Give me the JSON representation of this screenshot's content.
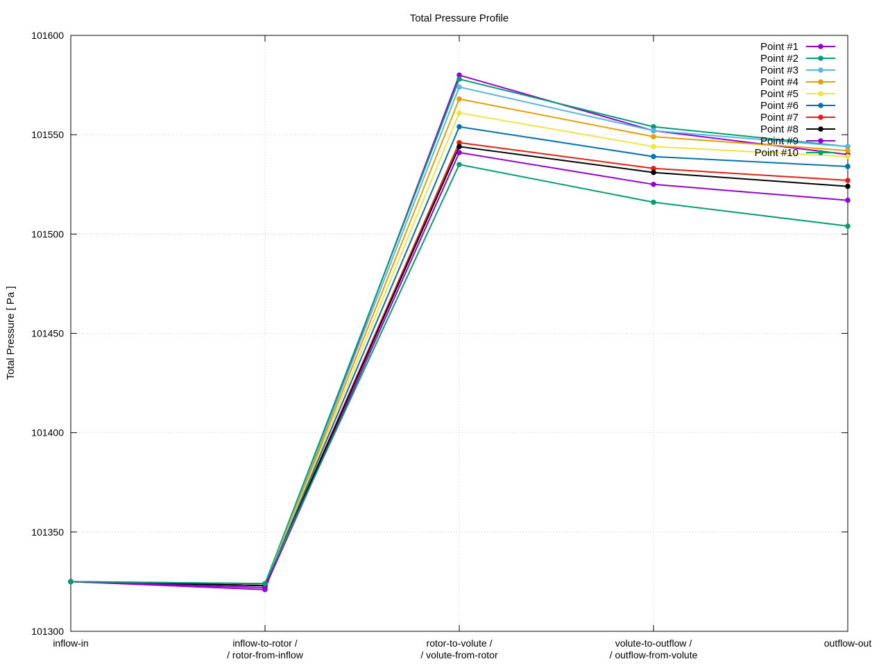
{
  "chart_data": {
    "type": "line",
    "title": "Total Pressure Profile",
    "xlabel": "",
    "ylabel": "Total Pressure [ Pa ]",
    "ylim": [
      101300,
      101600
    ],
    "yticks": [
      101300,
      101350,
      101400,
      101450,
      101500,
      101550,
      101600
    ],
    "ytick_labels": [
      "101300",
      "101350",
      "101400",
      "101450",
      "101500",
      "101550",
      "101600"
    ],
    "categories": [
      [
        "inflow-in"
      ],
      [
        "inflow-to-rotor /",
        "/ rotor-from-inflow"
      ],
      [
        "rotor-to-volute /",
        "/ volute-from-rotor"
      ],
      [
        "volute-to-outflow /",
        "/ outflow-from-volute"
      ],
      [
        "outflow-out"
      ]
    ],
    "grid": true,
    "legend_position": "top-right",
    "series": [
      {
        "name": "Point #1",
        "color": "#9400d3",
        "values": [
          101325,
          101321,
          101580,
          101552,
          101540
        ]
      },
      {
        "name": "Point #2",
        "color": "#009e73",
        "values": [
          101325,
          101324,
          101578,
          101554,
          101544
        ]
      },
      {
        "name": "Point #3",
        "color": "#56b4e9",
        "values": [
          101325,
          101323,
          101574,
          101552,
          101544
        ]
      },
      {
        "name": "Point #4",
        "color": "#e69f00",
        "values": [
          101325,
          101323,
          101568,
          101549,
          101542
        ]
      },
      {
        "name": "Point #5",
        "color": "#f0e442",
        "values": [
          101325,
          101323,
          101561,
          101544,
          101539
        ]
      },
      {
        "name": "Point #6",
        "color": "#0072b2",
        "values": [
          101325,
          101323,
          101554,
          101539,
          101534
        ]
      },
      {
        "name": "Point #7",
        "color": "#e51e10",
        "values": [
          101325,
          101323,
          101546,
          101533,
          101527
        ]
      },
      {
        "name": "Point #8",
        "color": "#000000",
        "values": [
          101325,
          101323,
          101544,
          101531,
          101524
        ]
      },
      {
        "name": "Point #9",
        "color": "#9400d3",
        "values": [
          101325,
          101322,
          101541,
          101525,
          101517
        ]
      },
      {
        "name": "Point #10",
        "color": "#009e73",
        "values": [
          101325,
          101324,
          101535,
          101516,
          101504
        ]
      }
    ]
  }
}
